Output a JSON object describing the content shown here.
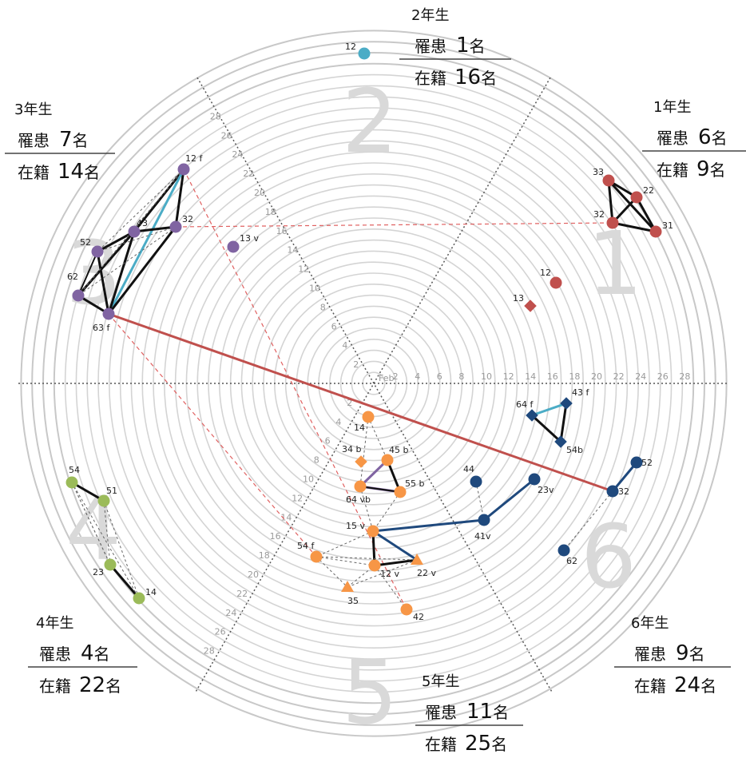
{
  "grades": [
    {
      "id": "g1",
      "title": "1年生",
      "affected_label": "罹患",
      "affected_value": "6",
      "enrolled_label": "在籍",
      "enrolled_value": "9",
      "unit": "名",
      "sector_number": "1"
    },
    {
      "id": "g2",
      "title": "2年生",
      "affected_label": "罹患",
      "affected_value": "1",
      "enrolled_label": "在籍",
      "enrolled_value": "16",
      "unit": "名",
      "sector_number": "2"
    },
    {
      "id": "g3",
      "title": "3年生",
      "affected_label": "罹患",
      "affected_value": "7",
      "enrolled_label": "在籍",
      "enrolled_value": "14",
      "unit": "名",
      "sector_number": "3"
    },
    {
      "id": "g4",
      "title": "4年生",
      "affected_label": "罹患",
      "affected_value": "4",
      "enrolled_label": "在籍",
      "enrolled_value": "22",
      "unit": "名",
      "sector_number": "4"
    },
    {
      "id": "g5",
      "title": "5年生",
      "affected_label": "罹患",
      "affected_value": "11",
      "enrolled_label": "在籍",
      "enrolled_value": "25",
      "unit": "名",
      "sector_number": "5"
    },
    {
      "id": "g6",
      "title": "6年生",
      "affected_label": "罹患",
      "affected_value": "9",
      "enrolled_label": "在籍",
      "enrolled_value": "24",
      "unit": "名",
      "sector_number": "6"
    }
  ],
  "axis": {
    "center_label": "Feb",
    "tick_labels": [
      "2",
      "4",
      "6",
      "8",
      "10",
      "12",
      "14",
      "16",
      "18",
      "20",
      "22",
      "24",
      "26",
      "28"
    ]
  },
  "colors": {
    "grade1": "#c0504d",
    "grade2": "#4bacc6",
    "grade3": "#8064a2",
    "grade4": "#9bbb59",
    "grade5": "#f79646",
    "grade6": "#1f497d"
  },
  "points": [
    {
      "id": "p1_33",
      "label": "33",
      "grade": 1
    },
    {
      "id": "p1_22",
      "label": "22",
      "grade": 1
    },
    {
      "id": "p1_32",
      "label": "32",
      "grade": 1
    },
    {
      "id": "p1_31",
      "label": "31",
      "grade": 1
    },
    {
      "id": "p1_12",
      "label": "12",
      "grade": 1
    },
    {
      "id": "p1_13",
      "label": "13",
      "grade": 1
    },
    {
      "id": "p2_12",
      "label": "12",
      "grade": 2
    },
    {
      "id": "p3_12f",
      "label": "12 f",
      "grade": 3
    },
    {
      "id": "p3_43",
      "label": "43",
      "grade": 3
    },
    {
      "id": "p3_32",
      "label": "32",
      "grade": 3
    },
    {
      "id": "p3_52",
      "label": "52",
      "grade": 3
    },
    {
      "id": "p3_62",
      "label": "62",
      "grade": 3
    },
    {
      "id": "p3_63f",
      "label": "63 f",
      "grade": 3
    },
    {
      "id": "p3_13v",
      "label": "13 v",
      "grade": 3
    },
    {
      "id": "p4_54",
      "label": "54",
      "grade": 4
    },
    {
      "id": "p4_51",
      "label": "51",
      "grade": 4
    },
    {
      "id": "p4_23",
      "label": "23",
      "grade": 4
    },
    {
      "id": "p4_14",
      "label": "14",
      "grade": 4
    },
    {
      "id": "p5_14",
      "label": "14",
      "grade": 5
    },
    {
      "id": "p5_34b",
      "label": "34 b",
      "grade": 5
    },
    {
      "id": "p5_45b",
      "label": "45 b",
      "grade": 5
    },
    {
      "id": "p5_55b",
      "label": "55 b",
      "grade": 5
    },
    {
      "id": "p5_64vb",
      "label": "64 vb",
      "grade": 5
    },
    {
      "id": "p5_15v",
      "label": "15 v",
      "grade": 5
    },
    {
      "id": "p5_54f",
      "label": "54 f",
      "grade": 5
    },
    {
      "id": "p5_12v",
      "label": "12 v",
      "grade": 5
    },
    {
      "id": "p5_22v",
      "label": "22 v",
      "grade": 5
    },
    {
      "id": "p5_35",
      "label": "35",
      "grade": 5
    },
    {
      "id": "p5_42",
      "label": "42",
      "grade": 5
    },
    {
      "id": "p6_43f",
      "label": "43 f",
      "grade": 6
    },
    {
      "id": "p6_64f",
      "label": "64 f",
      "grade": 6
    },
    {
      "id": "p6_54b",
      "label": "54b",
      "grade": 6
    },
    {
      "id": "p6_44",
      "label": "44",
      "grade": 6
    },
    {
      "id": "p6_23v",
      "label": "23v",
      "grade": 6
    },
    {
      "id": "p6_41v",
      "label": "41v",
      "grade": 6
    },
    {
      "id": "p6_52",
      "label": "52",
      "grade": 6
    },
    {
      "id": "p6_32",
      "label": "32",
      "grade": 6
    },
    {
      "id": "p6_62",
      "label": "62",
      "grade": 6
    }
  ]
}
